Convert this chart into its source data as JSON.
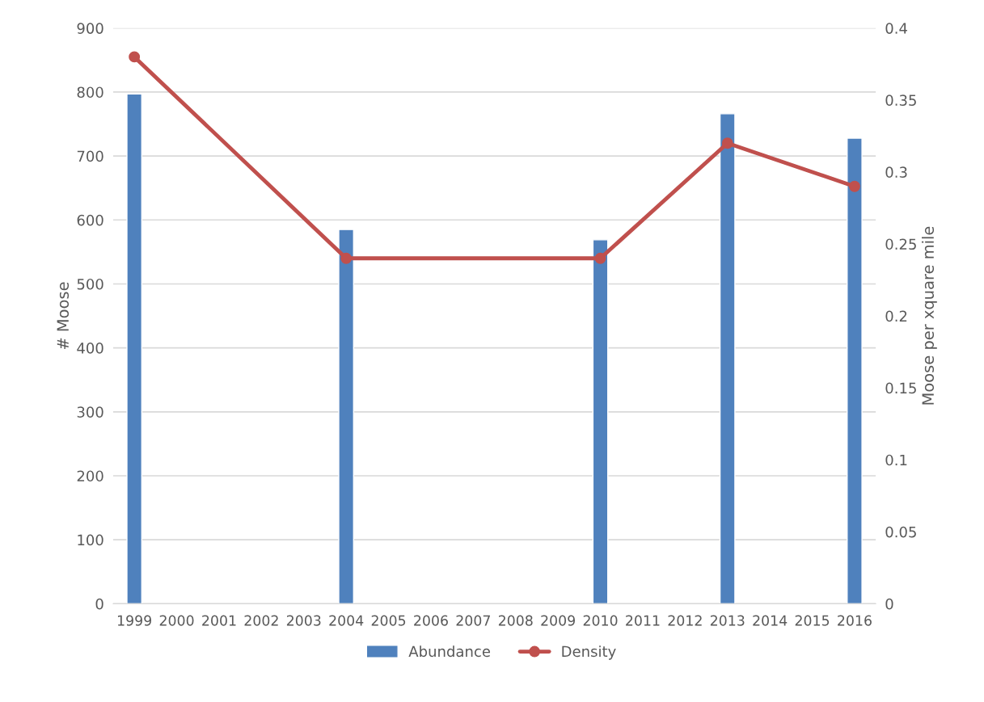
{
  "chart_data": {
    "type": "bar",
    "ylabel": "# Moose",
    "y2label": "Moose per xquare mile",
    "categories": [
      "1999",
      "2000",
      "2001",
      "2002",
      "2003",
      "2004",
      "2005",
      "2006",
      "2007",
      "2008",
      "2009",
      "2010",
      "2011",
      "2012",
      "2013",
      "2014",
      "2015",
      "2016"
    ],
    "series": [
      {
        "name": "Abundance",
        "color": "#4f81bd",
        "values": [
          797,
          null,
          null,
          null,
          null,
          585,
          null,
          null,
          null,
          null,
          null,
          569,
          null,
          null,
          766,
          null,
          null,
          728
        ]
      },
      {
        "name": "Density",
        "type": "line",
        "axis": "y2",
        "color": "#c0504d",
        "marker": "circle",
        "values": [
          0.38,
          null,
          null,
          null,
          null,
          0.24,
          null,
          null,
          null,
          null,
          null,
          0.24,
          null,
          null,
          0.32,
          null,
          null,
          0.29
        ]
      }
    ],
    "ylim": [
      0,
      900
    ],
    "yticks": [
      0,
      100,
      200,
      300,
      400,
      500,
      600,
      700,
      800,
      900
    ],
    "y2lim": [
      0,
      0.4
    ],
    "y2ticks": [
      0,
      0.05,
      0.1,
      0.15,
      0.2,
      0.25,
      0.3,
      0.35,
      0.4
    ],
    "grid": "y",
    "legend": "bottom"
  }
}
